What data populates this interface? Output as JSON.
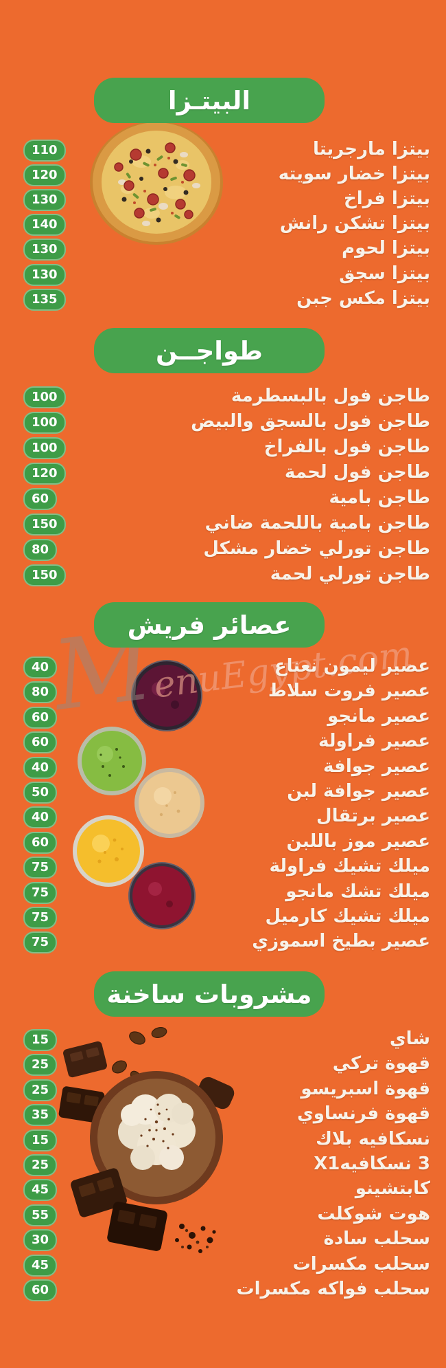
{
  "page": {
    "background_color": "#ED6A2E",
    "accent_green": "#48A34E",
    "badge_green": "#3E9C47",
    "text_color": "#F8F2E9"
  },
  "watermark": {
    "initial": "M",
    "rest": "enuEgypt.com"
  },
  "sections": [
    {
      "id": "pizza",
      "title": "البيتـزا",
      "items": [
        {
          "name": "بيتزا مارجريتا",
          "price": "110"
        },
        {
          "name": "بيتزا خضار سويته",
          "price": "120"
        },
        {
          "name": "بيتزا فراخ",
          "price": "130"
        },
        {
          "name": "بيتزا تشكن رانش",
          "price": "140"
        },
        {
          "name": "بيتزا لحوم",
          "price": "130"
        },
        {
          "name": "بيتزا سجق",
          "price": "130"
        },
        {
          "name": "بيتزا مكس جبن",
          "price": "135"
        }
      ]
    },
    {
      "id": "tagine",
      "title": "طواجــن",
      "items": [
        {
          "name": "طاجن فول بالبسطرمة",
          "price": "100"
        },
        {
          "name": "طاجن فول بالسجق والبيض",
          "price": "100"
        },
        {
          "name": "طاجن فول بالفراخ",
          "price": "100"
        },
        {
          "name": "طاجن فول لحمة",
          "price": "120"
        },
        {
          "name": "طاجن بامية",
          "price": "60"
        },
        {
          "name": "طاجن بامية باللحمة ضاني",
          "price": "150"
        },
        {
          "name": "طاجن تورلي خضار مشكل",
          "price": "80"
        },
        {
          "name": "طاجن تورلي لحمة",
          "price": "150"
        }
      ]
    },
    {
      "id": "fresh-juices",
      "title": "عصائر فريش",
      "items": [
        {
          "name": "عصير ليمون نعناع",
          "price": "40"
        },
        {
          "name": "عصير فروت سلاط",
          "price": "80"
        },
        {
          "name": "عصير مانجو",
          "price": "60"
        },
        {
          "name": "عصير فراولة",
          "price": "60"
        },
        {
          "name": "عصير جوافة",
          "price": "40"
        },
        {
          "name": "عصير جوافة لبن",
          "price": "50"
        },
        {
          "name": "عصير برتقال",
          "price": "40"
        },
        {
          "name": "عصير موز باللبن",
          "price": "60"
        },
        {
          "name": "ميلك تشيك فراولة",
          "price": "75"
        },
        {
          "name": "ميلك تشك مانجو",
          "price": "75"
        },
        {
          "name": "ميلك تشيك كارميل",
          "price": "75"
        },
        {
          "name": "عصير بطيخ اسموزي",
          "price": "75"
        }
      ]
    },
    {
      "id": "hot-drinks",
      "title": "مشروبات ساخنة",
      "items": [
        {
          "name": "شاي",
          "price": "15"
        },
        {
          "name": "قهوة تركي",
          "price": "25"
        },
        {
          "name": "قهوة اسبريسو",
          "price": "25"
        },
        {
          "name": "قهوة فرنساوي",
          "price": "35"
        },
        {
          "name": "نسكافيه بلاك",
          "price": "15"
        },
        {
          "name": "X1نسكافيه‎ 3",
          "price": "25"
        },
        {
          "name": "كابتشينو",
          "price": "45"
        },
        {
          "name": "هوت شوكلت",
          "price": "55"
        },
        {
          "name": "سحلب سادة",
          "price": "30"
        },
        {
          "name": "سحلب مكسرات",
          "price": "45"
        },
        {
          "name": "سحلب فواكه مكسرات",
          "price": "60"
        }
      ]
    }
  ]
}
